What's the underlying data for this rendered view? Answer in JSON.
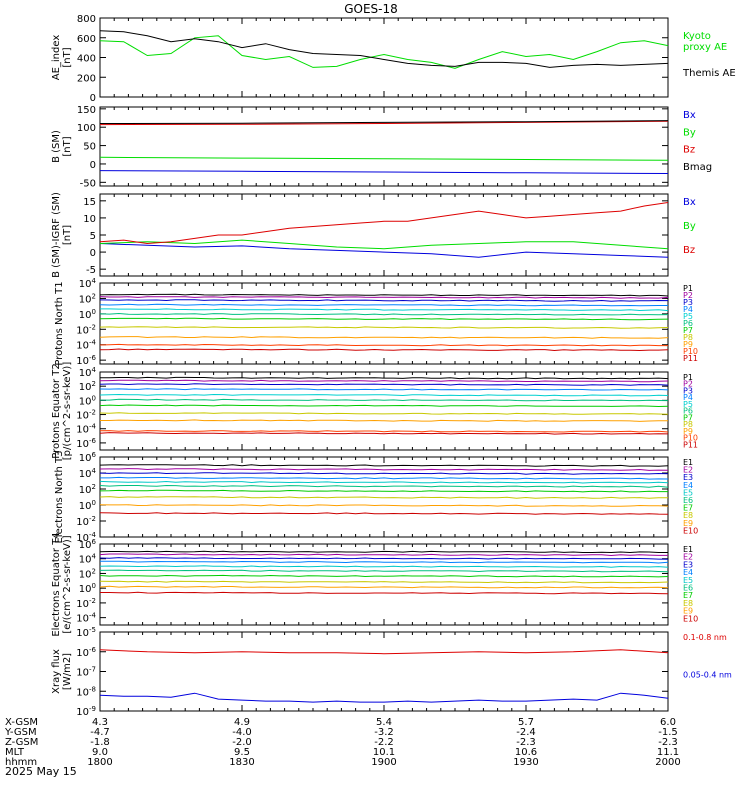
{
  "title": "GOES-18",
  "date_label": "2025 May 15",
  "colors": {
    "black": "#000000",
    "green": "#00dd00",
    "red": "#dd0000",
    "blue": "#0000dd",
    "p_ramp": [
      "#000000",
      "#a000a0",
      "#0000cc",
      "#0080ff",
      "#00d0d0",
      "#00c080",
      "#00cc00",
      "#c8c800",
      "#ffa000",
      "#ff4000",
      "#cc0000"
    ],
    "e_ramp": [
      "#000000",
      "#a000a0",
      "#0000cc",
      "#0080ff",
      "#00c8c8",
      "#00c080",
      "#00cc00",
      "#c8c800",
      "#ffa000",
      "#cc0000"
    ]
  },
  "x_axis": {
    "rows": [
      {
        "label": "X-GSM",
        "values": [
          "4.3",
          "4.9",
          "5.4",
          "5.7",
          "6.0"
        ]
      },
      {
        "label": "Y-GSM",
        "values": [
          "-4.7",
          "-4.0",
          "-3.2",
          "-2.4",
          "-1.5"
        ]
      },
      {
        "label": "Z-GSM",
        "values": [
          "-1.8",
          "-2.0",
          "-2.2",
          "-2.3",
          "-2.3"
        ]
      },
      {
        "label": "MLT",
        "values": [
          "9.0",
          "9.5",
          "10.1",
          "10.6",
          "11.1"
        ]
      },
      {
        "label": "hhmm",
        "values": [
          "1800",
          "1830",
          "1900",
          "1930",
          "2000"
        ]
      }
    ]
  },
  "chart_data": [
    {
      "type": "line",
      "ylabel": "AE_index [nT]",
      "ylim": [
        0,
        800
      ],
      "yticks": [
        "0",
        "200",
        "400",
        "600",
        "800"
      ],
      "series": [
        {
          "name": "Kyoto proxy AE",
          "color": "#00dd00",
          "x": [
            0,
            5,
            10,
            15,
            20,
            25,
            30,
            35,
            40,
            45,
            50,
            55,
            60,
            65,
            70,
            75,
            80,
            85,
            90,
            95,
            100,
            105,
            110,
            115,
            120
          ],
          "y": [
            570,
            560,
            420,
            440,
            600,
            620,
            420,
            380,
            410,
            300,
            310,
            380,
            430,
            380,
            350,
            290,
            380,
            460,
            410,
            430,
            380,
            460,
            550,
            570,
            520
          ]
        },
        {
          "name": "Themis AE",
          "color": "#000000",
          "x": [
            0,
            5,
            10,
            15,
            20,
            25,
            30,
            35,
            40,
            45,
            50,
            55,
            60,
            65,
            70,
            75,
            80,
            85,
            90,
            95,
            100,
            105,
            110,
            115,
            120
          ],
          "y": [
            670,
            660,
            620,
            560,
            590,
            560,
            500,
            540,
            480,
            440,
            430,
            420,
            380,
            340,
            320,
            310,
            350,
            350,
            340,
            300,
            320,
            330,
            320,
            330,
            340
          ]
        }
      ]
    },
    {
      "type": "line",
      "ylabel": "B (SM) [nT]",
      "ylim": [
        -60,
        155
      ],
      "yticks": [
        "-50",
        "0",
        "50",
        "100",
        "150"
      ],
      "series": [
        {
          "name": "Bx",
          "color": "#0000dd",
          "x": [
            0,
            30,
            60,
            90,
            120
          ],
          "y": [
            -18,
            -20,
            -22,
            -24,
            -26
          ]
        },
        {
          "name": "By",
          "color": "#00dd00",
          "x": [
            0,
            30,
            60,
            90,
            120
          ],
          "y": [
            18,
            16,
            14,
            12,
            10
          ]
        },
        {
          "name": "Bz",
          "color": "#dd0000",
          "x": [
            0,
            30,
            60,
            90,
            120
          ],
          "y": [
            107,
            108,
            110,
            113,
            116
          ]
        },
        {
          "name": "Bmag",
          "color": "#000000",
          "x": [
            0,
            30,
            60,
            90,
            120
          ],
          "y": [
            110,
            111,
            113,
            115,
            118
          ]
        }
      ]
    },
    {
      "type": "line",
      "ylabel": "B (SM)-IGRF (SM) [nT]",
      "ylim": [
        -7,
        17
      ],
      "yticks": [
        "-5",
        "0",
        "5",
        "10",
        "15"
      ],
      "series": [
        {
          "name": "Bx",
          "color": "#0000dd",
          "x": [
            0,
            10,
            20,
            30,
            40,
            50,
            60,
            70,
            80,
            90,
            100,
            110,
            120
          ],
          "y": [
            2.5,
            2,
            1.5,
            1.8,
            1,
            0.5,
            0,
            -0.5,
            -1.5,
            0,
            -0.5,
            -1,
            -1.5
          ]
        },
        {
          "name": "By",
          "color": "#00dd00",
          "x": [
            0,
            10,
            20,
            30,
            40,
            50,
            60,
            70,
            80,
            90,
            100,
            110,
            120
          ],
          "y": [
            2.5,
            3,
            2.5,
            3.5,
            2.5,
            1.5,
            1,
            2,
            2.5,
            3,
            3,
            2,
            1
          ]
        },
        {
          "name": "Bz",
          "color": "#dd0000",
          "x": [
            0,
            5,
            10,
            15,
            20,
            25,
            30,
            35,
            40,
            45,
            50,
            55,
            60,
            65,
            70,
            75,
            80,
            85,
            90,
            95,
            100,
            105,
            110,
            115,
            120
          ],
          "y": [
            3,
            3.5,
            2.5,
            3,
            4,
            5,
            5,
            6,
            7,
            7.5,
            8,
            8.5,
            9,
            9,
            10,
            11,
            12,
            11,
            10,
            10.5,
            11,
            11.5,
            12,
            13.5,
            14.5
          ]
        }
      ]
    },
    {
      "type": "line",
      "ylabel": "Protons North T1",
      "log": true,
      "ylim": [
        -6.5,
        4
      ],
      "yticks": [
        "10^4",
        "10^2",
        "10^0",
        "10^-2",
        "10^-4",
        "10^-6"
      ],
      "series": [
        {
          "name": "P1",
          "color": "#000000",
          "level": 2.5
        },
        {
          "name": "P2",
          "color": "#a000a0",
          "level": 2.2
        },
        {
          "name": "P3",
          "color": "#0000cc",
          "level": 1.8
        },
        {
          "name": "P4",
          "color": "#0080ff",
          "level": 1.2
        },
        {
          "name": "P5",
          "color": "#00d0d0",
          "level": 0.6
        },
        {
          "name": "P6",
          "color": "#00c080",
          "level": 0.0
        },
        {
          "name": "P7",
          "color": "#00cc00",
          "level": -0.6
        },
        {
          "name": "P8",
          "color": "#c8c800",
          "level": -1.7
        },
        {
          "name": "P9",
          "color": "#ffa000",
          "level": -3.0
        },
        {
          "name": "P10",
          "color": "#ff4000",
          "level": -4.0
        },
        {
          "name": "P11",
          "color": "#cc0000",
          "level": -4.6
        }
      ]
    },
    {
      "type": "line",
      "ylabel": "Protons Equator T2 [p/(cm^2-s-sr-keV)]",
      "log": true,
      "ylim": [
        -7,
        4
      ],
      "yticks": [
        "10^4",
        "10^2",
        "10^0",
        "10^-2",
        "10^-4",
        "10^-6"
      ],
      "series": [
        {
          "name": "P1",
          "color": "#000000",
          "level": 3.2
        },
        {
          "name": "P2",
          "color": "#a000a0",
          "level": 2.8
        },
        {
          "name": "P3",
          "color": "#0000cc",
          "level": 2.3
        },
        {
          "name": "P4",
          "color": "#0080ff",
          "level": 1.6
        },
        {
          "name": "P5",
          "color": "#00d0d0",
          "level": 0.8
        },
        {
          "name": "P6",
          "color": "#00c080",
          "level": 0.1
        },
        {
          "name": "P7",
          "color": "#00cc00",
          "level": -0.7
        },
        {
          "name": "P8",
          "color": "#c8c800",
          "level": -1.8
        },
        {
          "name": "P9",
          "color": "#ffa000",
          "level": -2.8
        },
        {
          "name": "P10",
          "color": "#ff4000",
          "level": -4.3
        },
        {
          "name": "P11",
          "color": "#cc0000",
          "level": -4.6
        }
      ]
    },
    {
      "type": "line",
      "ylabel": "Electrons North T3",
      "log": true,
      "ylim": [
        -4,
        6
      ],
      "yticks": [
        "10^6",
        "10^4",
        "10^2",
        "10^0",
        "10^-2",
        "10^-4"
      ],
      "series": [
        {
          "name": "E1",
          "color": "#000000",
          "level": 5.0
        },
        {
          "name": "E2",
          "color": "#a000a0",
          "level": 4.5
        },
        {
          "name": "E3",
          "color": "#0000cc",
          "level": 4.0
        },
        {
          "name": "E4",
          "color": "#0080ff",
          "level": 3.4
        },
        {
          "name": "E5",
          "color": "#00c8c8",
          "level": 2.9
        },
        {
          "name": "E6",
          "color": "#00c080",
          "level": 2.4
        },
        {
          "name": "E7",
          "color": "#00cc00",
          "level": 1.8
        },
        {
          "name": "E8",
          "color": "#c8c800",
          "level": 1.0
        },
        {
          "name": "E9",
          "color": "#ffa000",
          "level": 0.0
        },
        {
          "name": "E10",
          "color": "#cc0000",
          "level": -1.0
        }
      ]
    },
    {
      "type": "line",
      "ylabel": "Electrons Equator T4 [e/(cm^2-s-sr-keV)]",
      "log": true,
      "ylim": [
        -5,
        6
      ],
      "yticks": [
        "10^6",
        "10^4",
        "10^2",
        "10^0",
        "10^-2",
        "10^-4"
      ],
      "series": [
        {
          "name": "E1",
          "color": "#000000",
          "level": 5.0
        },
        {
          "name": "E2",
          "color": "#a000a0",
          "level": 4.6
        },
        {
          "name": "E3",
          "color": "#0000cc",
          "level": 4.1
        },
        {
          "name": "E4",
          "color": "#0080ff",
          "level": 3.6
        },
        {
          "name": "E5",
          "color": "#00c8c8",
          "level": 3.0
        },
        {
          "name": "E6",
          "color": "#00c080",
          "level": 2.4
        },
        {
          "name": "E7",
          "color": "#00cc00",
          "level": 1.7
        },
        {
          "name": "E8",
          "color": "#c8c800",
          "level": 0.9
        },
        {
          "name": "E9",
          "color": "#ffa000",
          "level": 0.2
        },
        {
          "name": "E10",
          "color": "#cc0000",
          "level": -0.6
        }
      ]
    },
    {
      "type": "line",
      "ylabel": "Xray flux [W/m2]",
      "log": true,
      "ylim": [
        -9,
        -5
      ],
      "yticks": [
        "10^-5",
        "10^-6",
        "10^-7",
        "10^-8",
        "10^-9"
      ],
      "series": [
        {
          "name": "0.1-0.8 nm",
          "color": "#dd0000",
          "x": [
            0,
            10,
            20,
            30,
            40,
            50,
            60,
            70,
            80,
            90,
            100,
            110,
            120
          ],
          "y": [
            -5.9,
            -6.0,
            -6.05,
            -6.0,
            -6.05,
            -6.05,
            -6.1,
            -6.05,
            -6.0,
            -6.05,
            -6.0,
            -5.9,
            -6.05
          ]
        },
        {
          "name": "0.05-0.4 nm",
          "color": "#0000dd",
          "x": [
            0,
            5,
            10,
            15,
            20,
            25,
            30,
            35,
            40,
            45,
            50,
            55,
            60,
            65,
            70,
            75,
            80,
            85,
            90,
            95,
            100,
            105,
            110,
            115,
            120
          ],
          "y": [
            -8.2,
            -8.25,
            -8.25,
            -8.3,
            -8.1,
            -8.4,
            -8.45,
            -8.5,
            -8.5,
            -8.55,
            -8.5,
            -8.55,
            -8.55,
            -8.5,
            -8.55,
            -8.5,
            -8.45,
            -8.5,
            -8.5,
            -8.45,
            -8.4,
            -8.45,
            -8.1,
            -8.2,
            -8.35
          ]
        }
      ]
    }
  ]
}
